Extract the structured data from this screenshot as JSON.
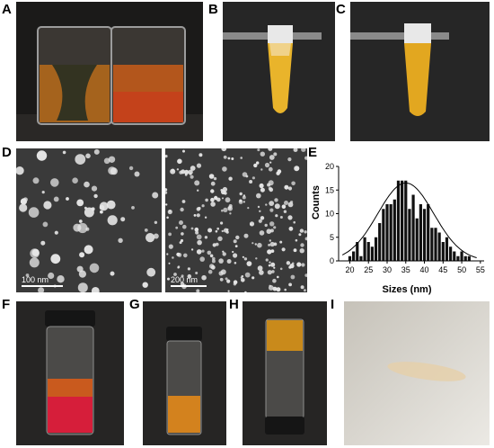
{
  "panels": {
    "A": "A",
    "B": "B",
    "C": "C",
    "D": "D",
    "E": "E",
    "F": "F",
    "G": "G",
    "H": "H",
    "I": "I"
  },
  "scale_bars": {
    "left": "100 nm",
    "right": "200 nm"
  },
  "photos": {
    "A": "beakers-photo",
    "B": "tube-with-tweezers-photo",
    "C": "tube-with-tweezers-photo",
    "D_left": "sem-nanoparticles-large",
    "D_right": "sem-nanoparticles-small",
    "F": "vial-biphasic-red",
    "G": "vial-orange-liquid",
    "H": "inverted-vial",
    "I": "film-on-paper"
  },
  "chart_data": {
    "type": "bar",
    "xlabel": "Sizes (nm)",
    "ylabel": "Counts",
    "xlim": [
      17,
      56
    ],
    "ylim": [
      0,
      20
    ],
    "x_ticks": [
      20,
      25,
      30,
      35,
      40,
      45,
      50,
      55
    ],
    "y_ticks": [
      0,
      5,
      10,
      15,
      20
    ],
    "x": [
      20,
      21,
      22,
      23,
      24,
      25,
      26,
      27,
      28,
      29,
      30,
      31,
      32,
      33,
      34,
      35,
      36,
      37,
      38,
      39,
      40,
      41,
      42,
      43,
      44,
      45,
      46,
      47,
      48,
      49,
      50,
      51,
      52
    ],
    "values": [
      1,
      2,
      4,
      1,
      5,
      4,
      3,
      5,
      8,
      11,
      12,
      12,
      13,
      17,
      17,
      17,
      11,
      14,
      9,
      12,
      11,
      12,
      7,
      7,
      6,
      4,
      5,
      3,
      2,
      1,
      2,
      1,
      1
    ],
    "fit_curve": {
      "type": "gaussian",
      "mean": 35,
      "sigma": 7.5,
      "peak": 16.5
    }
  }
}
